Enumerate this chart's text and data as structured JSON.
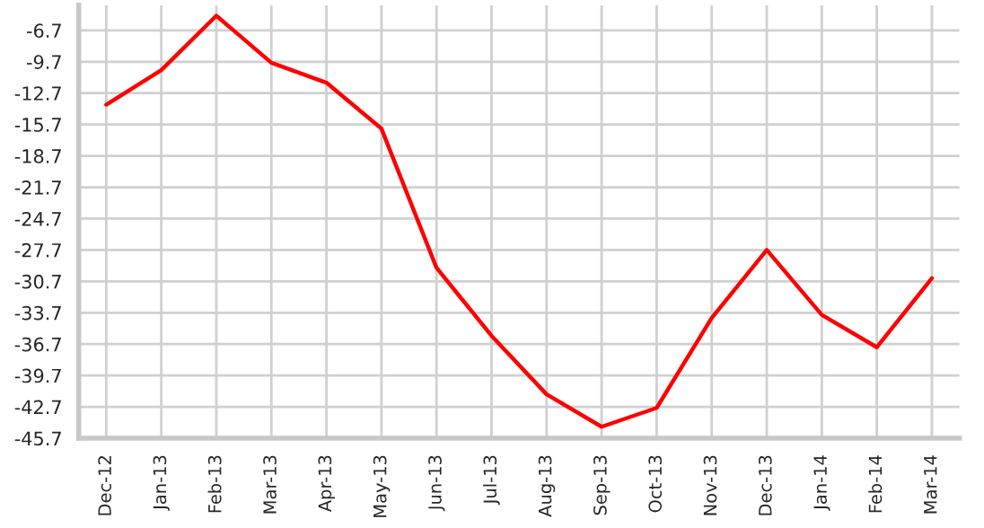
{
  "chart_data": {
    "type": "line",
    "categories": [
      "Dec-12",
      "Jan-13",
      "Feb-13",
      "Mar-13",
      "Apr-13",
      "May-13",
      "Jun-13",
      "Jul-13",
      "Aug-13",
      "Sep-13",
      "Oct-13",
      "Nov-13",
      "Dec-13",
      "Jan-14",
      "Feb-14",
      "Mar-14"
    ],
    "series": [
      {
        "color": "#ff0000",
        "values": [
          -13.8,
          -10.5,
          -5.3,
          -9.8,
          -11.7,
          -16.1,
          -29.4,
          -35.9,
          -41.5,
          -44.6,
          -42.8,
          -34.2,
          -27.7,
          -33.9,
          -37.0,
          -30.4
        ]
      }
    ],
    "ylim": [
      -45.7,
      -4.3
    ],
    "yticks": [
      -6.7,
      -9.7,
      -12.7,
      -15.7,
      -18.7,
      -21.7,
      -24.7,
      -27.7,
      -30.7,
      -33.7,
      -36.7,
      -39.7,
      -42.7,
      -45.7
    ],
    "grid": true,
    "marker": "none",
    "line_style": "solid"
  }
}
